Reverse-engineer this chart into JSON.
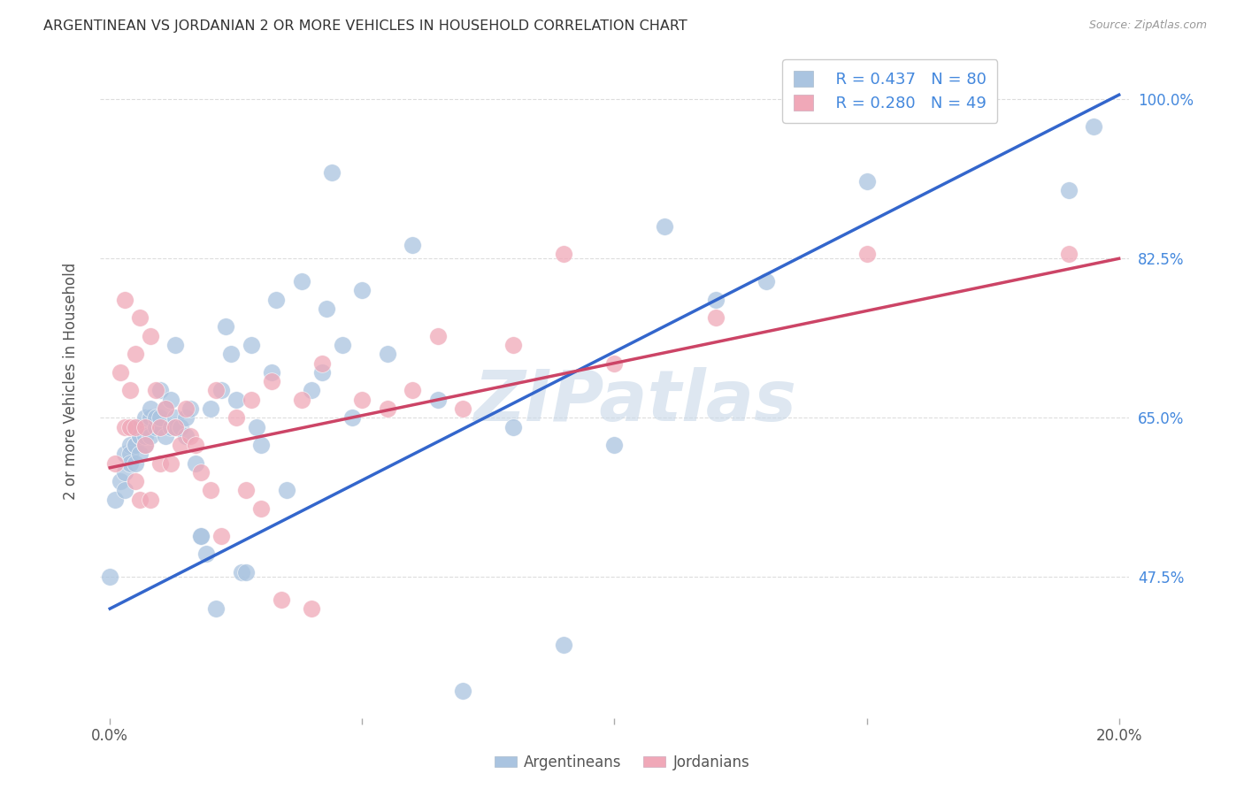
{
  "title": "ARGENTINEAN VS JORDANIAN 2 OR MORE VEHICLES IN HOUSEHOLD CORRELATION CHART",
  "source": "Source: ZipAtlas.com",
  "ylabel": "2 or more Vehicles in Household",
  "watermark": "ZIPatlas",
  "legend_blue_R": "R = 0.437",
  "legend_blue_N": "N = 80",
  "legend_pink_R": "R = 0.280",
  "legend_pink_N": "N = 49",
  "blue_color": "#aac4e0",
  "pink_color": "#f0a8b8",
  "blue_line_color": "#3366cc",
  "pink_line_color": "#cc4466",
  "title_color": "#333333",
  "source_color": "#999999",
  "tick_color_right": "#4488dd",
  "grid_color": "#dddddd",
  "background_color": "#ffffff",
  "blue_scatter": {
    "x": [
      0.001,
      0.002,
      0.003,
      0.003,
      0.003,
      0.004,
      0.004,
      0.004,
      0.005,
      0.005,
      0.005,
      0.005,
      0.006,
      0.006,
      0.006,
      0.006,
      0.007,
      0.007,
      0.007,
      0.007,
      0.008,
      0.008,
      0.008,
      0.009,
      0.009,
      0.01,
      0.01,
      0.01,
      0.011,
      0.011,
      0.012,
      0.012,
      0.013,
      0.013,
      0.013,
      0.014,
      0.015,
      0.015,
      0.016,
      0.017,
      0.018,
      0.018,
      0.019,
      0.02,
      0.021,
      0.022,
      0.023,
      0.024,
      0.025,
      0.026,
      0.027,
      0.028,
      0.029,
      0.03,
      0.032,
      0.033,
      0.035,
      0.038,
      0.04,
      0.042,
      0.043,
      0.044,
      0.046,
      0.048,
      0.05,
      0.055,
      0.06,
      0.065,
      0.07,
      0.08,
      0.09,
      0.1,
      0.11,
      0.12,
      0.13,
      0.15,
      0.17,
      0.19,
      0.195,
      0.0
    ],
    "y": [
      0.56,
      0.58,
      0.61,
      0.57,
      0.59,
      0.62,
      0.61,
      0.6,
      0.62,
      0.6,
      0.62,
      0.64,
      0.63,
      0.61,
      0.63,
      0.64,
      0.62,
      0.64,
      0.65,
      0.63,
      0.65,
      0.63,
      0.66,
      0.64,
      0.65,
      0.64,
      0.65,
      0.68,
      0.63,
      0.66,
      0.64,
      0.67,
      0.65,
      0.64,
      0.73,
      0.64,
      0.63,
      0.65,
      0.66,
      0.6,
      0.52,
      0.52,
      0.5,
      0.66,
      0.44,
      0.68,
      0.75,
      0.72,
      0.67,
      0.48,
      0.48,
      0.73,
      0.64,
      0.62,
      0.7,
      0.78,
      0.57,
      0.8,
      0.68,
      0.7,
      0.77,
      0.92,
      0.73,
      0.65,
      0.79,
      0.72,
      0.84,
      0.67,
      0.35,
      0.64,
      0.4,
      0.62,
      0.86,
      0.78,
      0.8,
      0.91,
      1.0,
      0.9,
      0.97,
      0.475
    ]
  },
  "pink_scatter": {
    "x": [
      0.001,
      0.002,
      0.003,
      0.003,
      0.004,
      0.004,
      0.005,
      0.005,
      0.005,
      0.006,
      0.006,
      0.007,
      0.007,
      0.008,
      0.008,
      0.009,
      0.01,
      0.01,
      0.011,
      0.012,
      0.013,
      0.014,
      0.015,
      0.016,
      0.017,
      0.018,
      0.02,
      0.021,
      0.022,
      0.025,
      0.027,
      0.028,
      0.03,
      0.032,
      0.034,
      0.038,
      0.04,
      0.042,
      0.05,
      0.055,
      0.06,
      0.065,
      0.07,
      0.08,
      0.09,
      0.1,
      0.12,
      0.15,
      0.19
    ],
    "y": [
      0.6,
      0.7,
      0.64,
      0.78,
      0.68,
      0.64,
      0.72,
      0.64,
      0.58,
      0.56,
      0.76,
      0.62,
      0.64,
      0.56,
      0.74,
      0.68,
      0.6,
      0.64,
      0.66,
      0.6,
      0.64,
      0.62,
      0.66,
      0.63,
      0.62,
      0.59,
      0.57,
      0.68,
      0.52,
      0.65,
      0.57,
      0.67,
      0.55,
      0.69,
      0.45,
      0.67,
      0.44,
      0.71,
      0.67,
      0.66,
      0.68,
      0.74,
      0.66,
      0.73,
      0.83,
      0.71,
      0.76,
      0.83,
      0.83
    ]
  },
  "blue_line": {
    "x0": 0.0,
    "x1": 0.2,
    "y0": 0.44,
    "y1": 1.005
  },
  "pink_line": {
    "x0": 0.0,
    "x1": 0.2,
    "y0": 0.595,
    "y1": 0.825
  },
  "xlim": [
    -0.002,
    0.202
  ],
  "ylim": [
    0.32,
    1.06
  ],
  "yticks": [
    0.475,
    0.65,
    0.825,
    1.0
  ],
  "ytick_labels": [
    "47.5%",
    "65.0%",
    "82.5%",
    "100.0%"
  ],
  "xtick_positions": [
    0.0,
    0.05,
    0.1,
    0.15,
    0.2
  ],
  "xtick_labels": [
    "0.0%",
    "",
    "",
    "",
    "20.0%"
  ],
  "legend_label_blue": "Argentineans",
  "legend_label_pink": "Jordanians"
}
